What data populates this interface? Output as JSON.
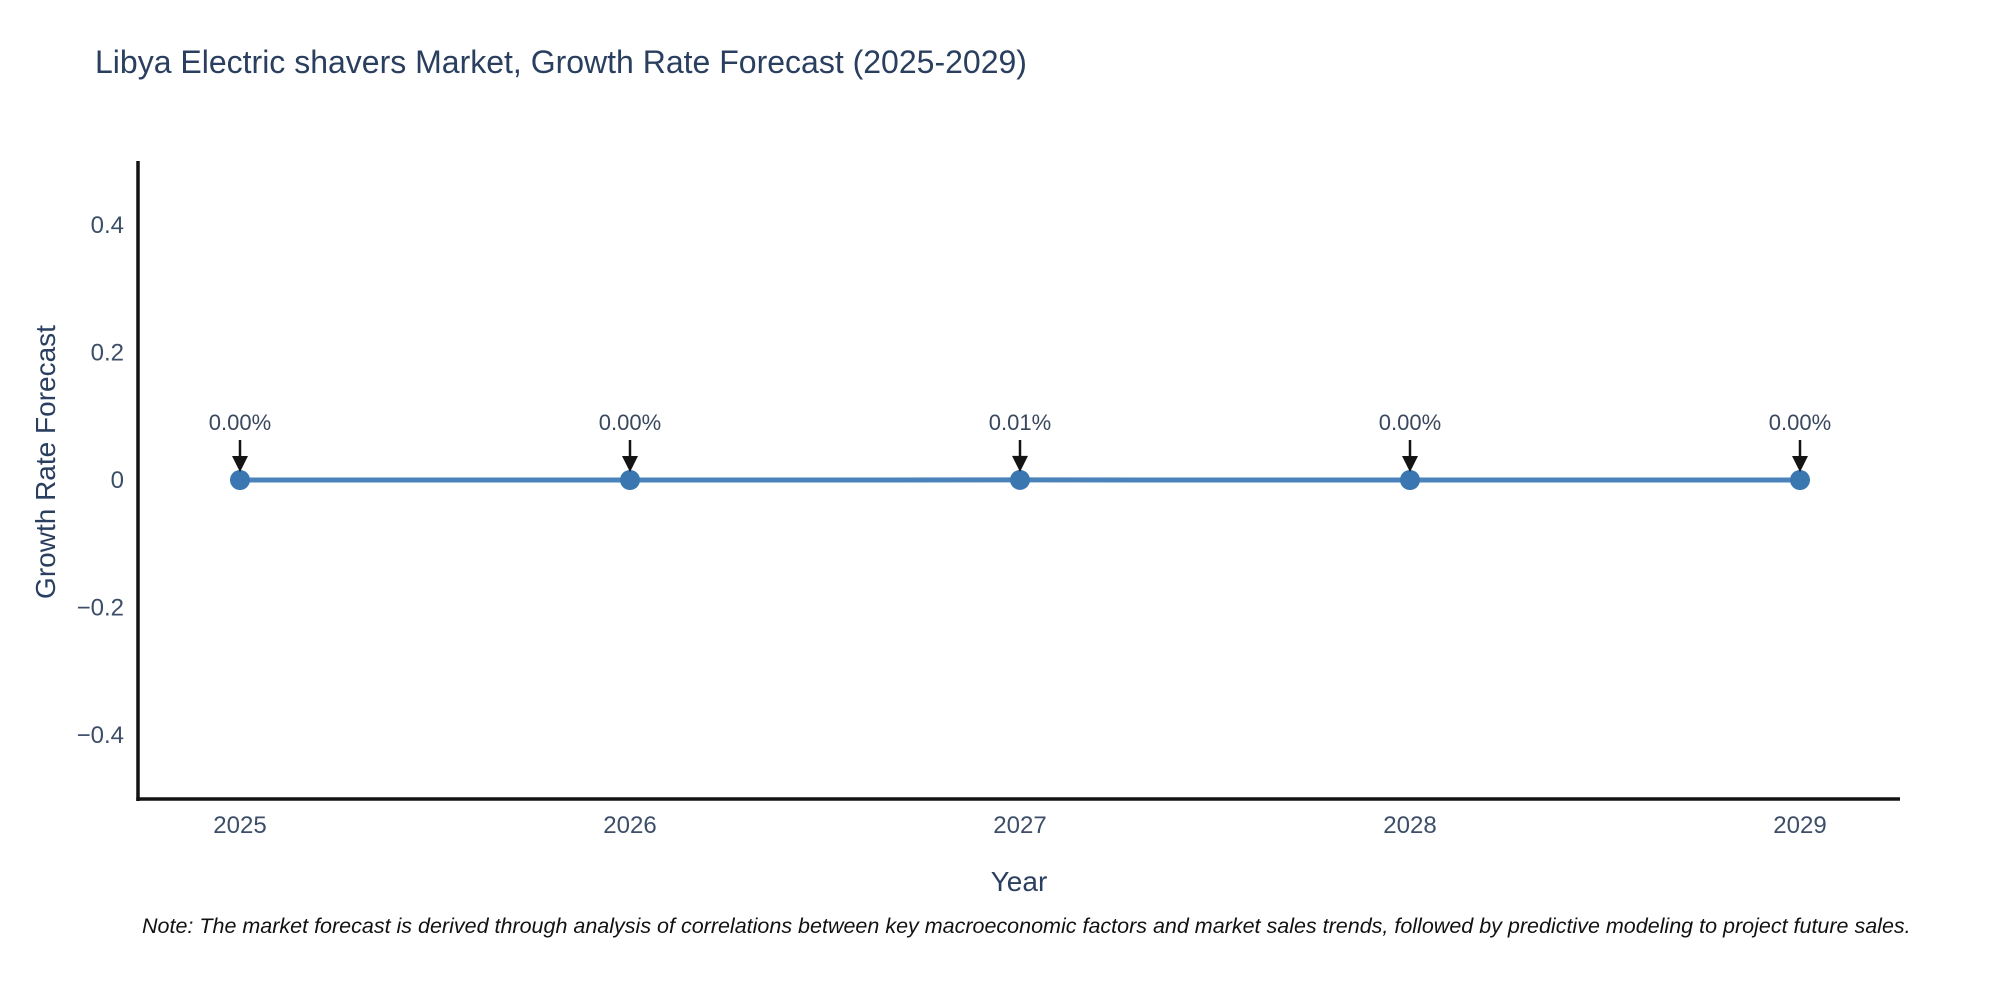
{
  "chart": {
    "title": "Libya Electric shavers Market, Growth Rate Forecast (2025-2029)",
    "x_axis_label": "Year",
    "y_axis_label": "Growth Rate Forecast",
    "note": "Note: The market forecast is derived through analysis of correlations between key macroeconomic factors and market sales trends, followed by predictive modeling to project future sales."
  },
  "chart_data": {
    "type": "line",
    "title": "Libya Electric shavers Market, Growth Rate Forecast (2025-2029)",
    "xlabel": "Year",
    "ylabel": "Growth Rate Forecast",
    "categories": [
      "2025",
      "2026",
      "2027",
      "2028",
      "2029"
    ],
    "values_percent": [
      0.0,
      0.0,
      0.01,
      0.0,
      0.0
    ],
    "point_labels": [
      "0.00%",
      "0.00%",
      "0.01%",
      "0.00%",
      "0.00%"
    ],
    "ytick_values": [
      0.4,
      0.2,
      0,
      -0.2,
      -0.4
    ],
    "ytick_labels": [
      "0.4",
      "0.2",
      "0",
      "−0.2",
      "−0.4"
    ],
    "ylim": [
      -0.5,
      0.5
    ],
    "grid": false,
    "legend_position": "none",
    "colors": {
      "line": "#4a82ba",
      "marker": "#3a76b0",
      "arrow": "#141414",
      "spine": "#131313",
      "title_text": "#2a3f5f",
      "axis_text": "#2a3f5f",
      "tick_text": "#3d4e68",
      "annotation_text": "#3a485e",
      "background": "#ffffff"
    }
  }
}
